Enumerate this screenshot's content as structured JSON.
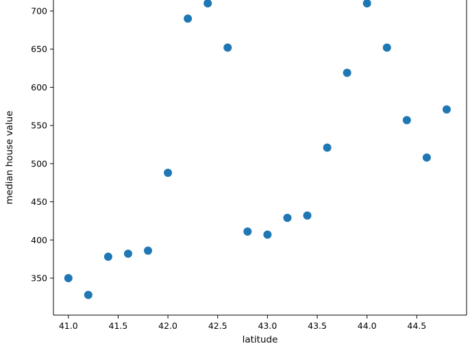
{
  "chart_data": {
    "type": "scatter",
    "title": "",
    "xlabel": "latitude",
    "ylabel": "median house value",
    "x": [
      41.0,
      41.2,
      41.4,
      41.6,
      41.8,
      42.0,
      42.2,
      42.4,
      42.6,
      42.8,
      43.0,
      43.2,
      43.4,
      43.6,
      43.8,
      44.0,
      44.2,
      44.4,
      44.6,
      44.8
    ],
    "y": [
      350,
      328,
      378,
      382,
      386,
      488,
      690,
      710,
      652,
      411,
      407,
      429,
      432,
      521,
      619,
      710,
      652,
      557,
      508,
      571
    ],
    "xticks": {
      "values": [
        41.0,
        41.5,
        42.0,
        42.5,
        43.0,
        43.5,
        44.0,
        44.5
      ],
      "labels": [
        "41.0",
        "41.5",
        "42.0",
        "42.5",
        "43.0",
        "43.5",
        "44.0",
        "44.5"
      ]
    },
    "yticks": {
      "values": [
        350,
        400,
        450,
        500,
        550,
        600,
        650,
        700
      ],
      "labels": [
        "350",
        "400",
        "450",
        "500",
        "550",
        "600",
        "650",
        "700"
      ]
    },
    "xlim": [
      40.85,
      45.0
    ],
    "ylim": [
      301.5,
      714.4
    ],
    "grid": false,
    "legend": null,
    "marker": {
      "color": "#1f77b4",
      "radius": 6
    },
    "axis_color": "#000000"
  }
}
